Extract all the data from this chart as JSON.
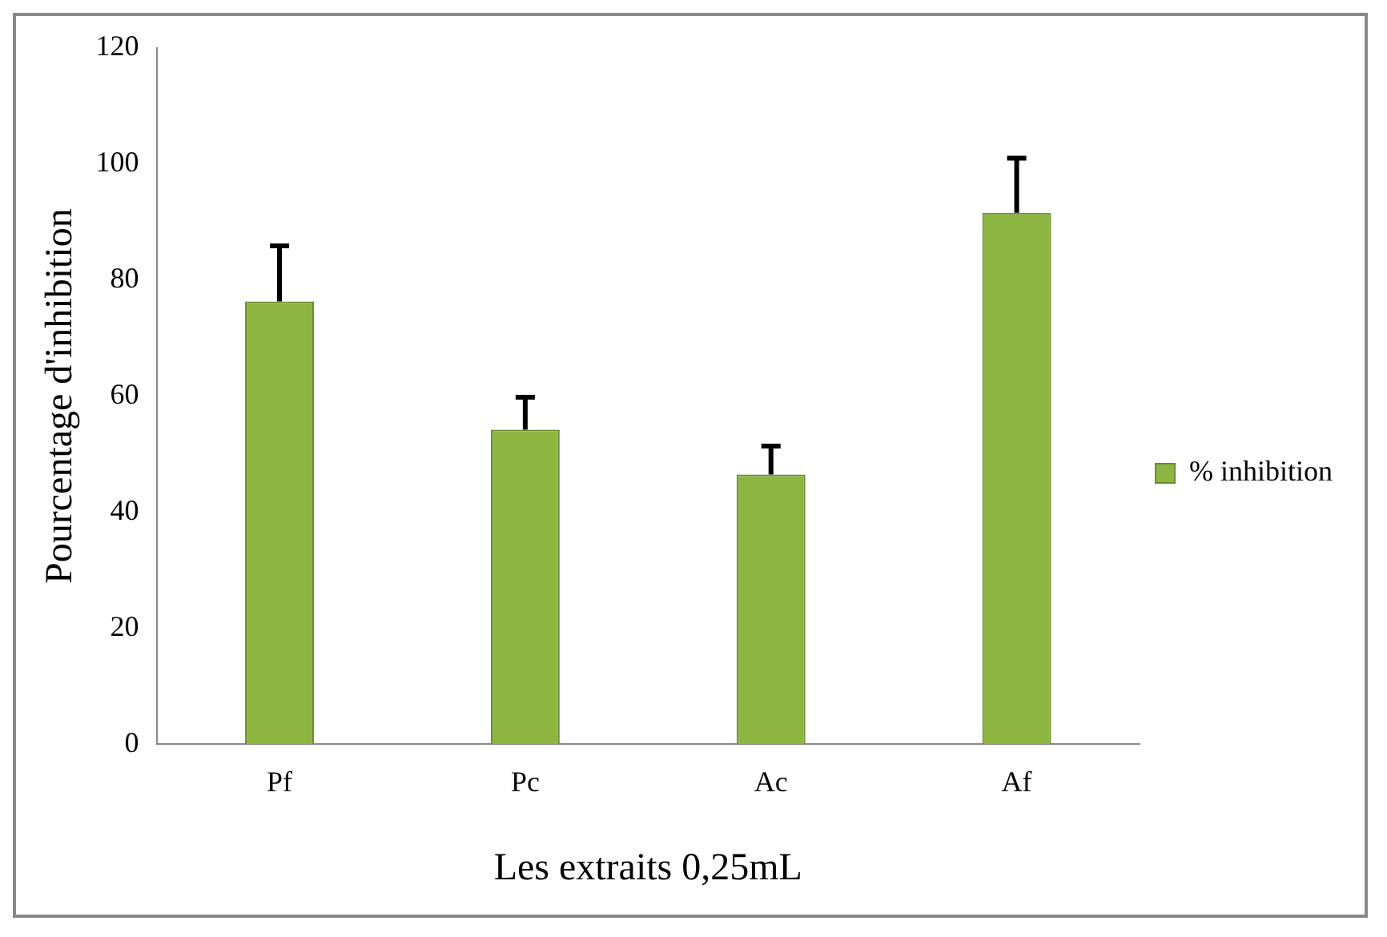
{
  "chart_data": {
    "type": "bar",
    "xlabel": "Les extraits 0,25mL",
    "ylabel": "Pourcentage d'inhibition",
    "categories": [
      "Pf",
      "Pc",
      "Ac",
      "Af"
    ],
    "series": [
      {
        "name": "% inhibition",
        "color": "#8db542",
        "values": [
          76.3,
          54.2,
          46.5,
          91.6
        ],
        "errors": [
          [
            76.3,
            85.9
          ],
          [
            54.2,
            59.8
          ],
          [
            46.5,
            51.4
          ],
          [
            91.6,
            101
          ]
        ]
      }
    ],
    "ylim": [
      0,
      120
    ],
    "yticks": [
      0,
      20,
      40,
      60,
      80,
      100,
      120
    ],
    "grid": false,
    "legend": "right"
  }
}
